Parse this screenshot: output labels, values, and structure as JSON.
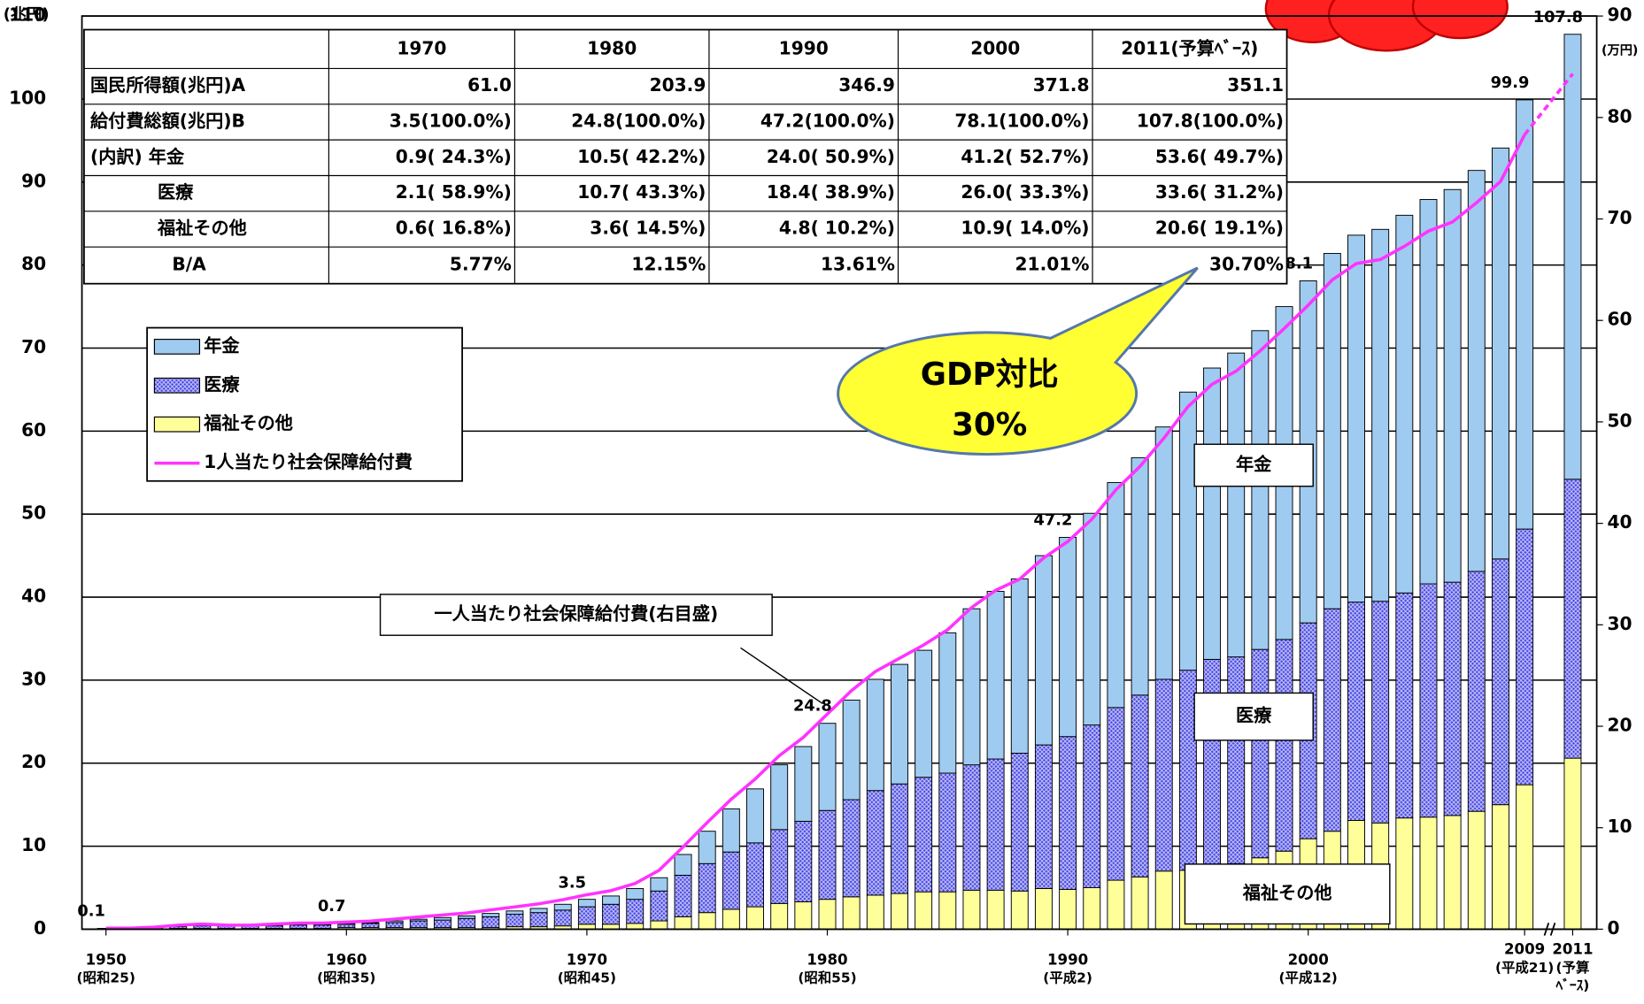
{
  "chart_data": {
    "type": "bar",
    "stacked": true,
    "x": [
      1950,
      1951,
      1952,
      1953,
      1954,
      1955,
      1956,
      1957,
      1958,
      1959,
      1960,
      1961,
      1962,
      1963,
      1964,
      1965,
      1966,
      1967,
      1968,
      1969,
      1970,
      1971,
      1972,
      1973,
      1974,
      1975,
      1976,
      1977,
      1978,
      1979,
      1980,
      1981,
      1982,
      1983,
      1984,
      1985,
      1986,
      1987,
      1988,
      1989,
      1990,
      1991,
      1992,
      1993,
      1994,
      1995,
      1996,
      1997,
      1998,
      1999,
      2000,
      2001,
      2002,
      2003,
      2004,
      2005,
      2006,
      2007,
      2008,
      2009,
      2011
    ],
    "xlim": [
      1949,
      2012
    ],
    "xticks": [
      1950,
      1960,
      1970,
      1980,
      1990,
      2000,
      2009,
      2011
    ],
    "xtick_labels": [
      [
        "1950",
        "(昭和25)"
      ],
      [
        "1960",
        "(昭和35)"
      ],
      [
        "1970",
        "(昭和45)"
      ],
      [
        "1980",
        "(昭和55)"
      ],
      [
        "1990",
        "(平成2)"
      ],
      [
        "2000",
        "(平成12)"
      ],
      [
        "2009",
        "(平成21)"
      ],
      [
        "2011",
        "(予算",
        "ﾍﾞｰｽ)"
      ]
    ],
    "ylim": [
      0,
      110
    ],
    "yticks": [
      0,
      10,
      20,
      30,
      40,
      50,
      60,
      70,
      80,
      90,
      100,
      110
    ],
    "ylabel": "(兆円)",
    "y2lim": [
      0,
      90
    ],
    "y2ticks": [
      0,
      10,
      20,
      30,
      40,
      50,
      60,
      70,
      80,
      90
    ],
    "y2label": "(万円)",
    "grid": true,
    "series": [
      {
        "name": "福祉その他",
        "color": "#ffff99",
        "values": [
          0.0,
          0.0,
          0.0,
          0.1,
          0.1,
          0.1,
          0.1,
          0.1,
          0.1,
          0.1,
          0.2,
          0.2,
          0.2,
          0.2,
          0.2,
          0.2,
          0.2,
          0.3,
          0.3,
          0.4,
          0.6,
          0.6,
          0.7,
          1.0,
          1.5,
          2.0,
          2.4,
          2.7,
          3.1,
          3.3,
          3.6,
          3.9,
          4.1,
          4.3,
          4.5,
          4.5,
          4.7,
          4.7,
          4.6,
          4.9,
          4.8,
          5.0,
          5.9,
          6.3,
          7.0,
          7.1,
          7.6,
          7.9,
          8.6,
          9.4,
          10.9,
          11.8,
          13.1,
          12.8,
          13.4,
          13.5,
          13.7,
          14.2,
          15.0,
          17.4,
          20.6
        ]
      },
      {
        "name": "医療",
        "color": "#4b4bdc",
        "pattern": "crosshatch",
        "values": [
          0.1,
          0.1,
          0.2,
          0.2,
          0.3,
          0.3,
          0.3,
          0.3,
          0.4,
          0.4,
          0.4,
          0.5,
          0.6,
          0.8,
          0.9,
          1.1,
          1.3,
          1.5,
          1.7,
          1.9,
          2.1,
          2.4,
          2.9,
          3.6,
          5.0,
          5.9,
          6.9,
          7.7,
          8.9,
          9.7,
          10.7,
          11.7,
          12.6,
          13.2,
          13.8,
          14.3,
          15.1,
          15.8,
          16.6,
          17.3,
          18.4,
          19.6,
          20.8,
          21.9,
          23.1,
          24.1,
          24.9,
          24.9,
          25.1,
          25.5,
          26.0,
          26.8,
          26.3,
          26.7,
          27.1,
          28.1,
          28.1,
          28.9,
          29.6,
          30.8,
          33.6
        ]
      },
      {
        "name": "年金",
        "color": "#9fcbf0",
        "values": [
          0.0,
          0.0,
          0.0,
          0.0,
          0.0,
          0.0,
          0.0,
          0.1,
          0.1,
          0.1,
          0.1,
          0.1,
          0.2,
          0.2,
          0.3,
          0.3,
          0.4,
          0.4,
          0.5,
          0.7,
          0.9,
          1.0,
          1.3,
          1.6,
          2.5,
          3.9,
          5.2,
          6.5,
          7.8,
          9.0,
          10.5,
          12.0,
          13.4,
          14.4,
          15.3,
          16.9,
          18.8,
          20.2,
          21.0,
          22.8,
          24.0,
          25.5,
          27.1,
          28.6,
          30.4,
          33.5,
          35.1,
          36.6,
          38.4,
          40.1,
          41.2,
          42.8,
          44.2,
          44.8,
          45.5,
          46.3,
          47.3,
          48.3,
          49.5,
          51.7,
          53.6
        ]
      },
      {
        "name": "1人当たり社会保障給付費",
        "type": "line",
        "axis": "y2",
        "color": "#ff33ff",
        "dashed_last_segment": true,
        "values": [
          0.1,
          0.1,
          0.2,
          0.4,
          0.5,
          0.4,
          0.4,
          0.5,
          0.6,
          0.6,
          0.7,
          0.8,
          1.0,
          1.2,
          1.4,
          1.6,
          1.9,
          2.2,
          2.5,
          2.9,
          3.4,
          3.8,
          4.5,
          5.8,
          8.1,
          10.5,
          12.8,
          14.8,
          17.1,
          18.9,
          21.2,
          23.5,
          25.4,
          26.7,
          28.0,
          29.5,
          31.7,
          33.4,
          34.5,
          36.6,
          38.2,
          40.4,
          43.3,
          45.6,
          48.4,
          51.5,
          53.7,
          55.0,
          57.0,
          59.2,
          61.5,
          64.0,
          65.6,
          66.0,
          67.3,
          68.8,
          69.7,
          71.6,
          73.7,
          78.3,
          84.3
        ]
      }
    ],
    "bar_totals": {
      "x": [
        1950,
        1960,
        1970,
        1980,
        1990,
        2000,
        2009,
        2011
      ],
      "values": [
        0.1,
        0.7,
        3.5,
        24.8,
        47.2,
        78.1,
        99.9,
        107.8
      ]
    },
    "annotations": [
      "年金",
      "医療",
      "福祉その他",
      "一人当たり社会保障給付費(右目盛)"
    ],
    "callout": [
      "GDP対比",
      "30%"
    ]
  },
  "table": {
    "header": [
      "1970",
      "1980",
      "1990",
      "2000",
      "2011(予算ﾍﾞｰｽ)"
    ],
    "rows": [
      [
        "国民所得額(兆円)A",
        "61.0",
        "203.9",
        "346.9",
        "371.8",
        "351.1"
      ],
      [
        "給付費総額(兆円)B",
        "3.5(100.0%)",
        "24.8(100.0%)",
        "47.2(100.0%)",
        "78.1(100.0%)",
        "107.8(100.0%)"
      ],
      [
        "(内訳) 年金",
        "0.9( 24.3%)",
        "10.5( 42.2%)",
        "24.0( 50.9%)",
        "41.2( 52.7%)",
        "53.6( 49.7%)"
      ],
      [
        "医療",
        "2.1( 58.9%)",
        "10.7( 43.3%)",
        "18.4( 38.9%)",
        "26.0( 33.3%)",
        "33.6( 31.2%)"
      ],
      [
        "福祉その他",
        "0.6( 16.8%)",
        "3.6( 14.5%)",
        "4.8( 10.2%)",
        "10.9( 14.0%)",
        "20.6( 19.1%)"
      ],
      [
        "B/A",
        "5.77%",
        "12.15%",
        "13.61%",
        "21.01%",
        "30.70%"
      ]
    ]
  }
}
